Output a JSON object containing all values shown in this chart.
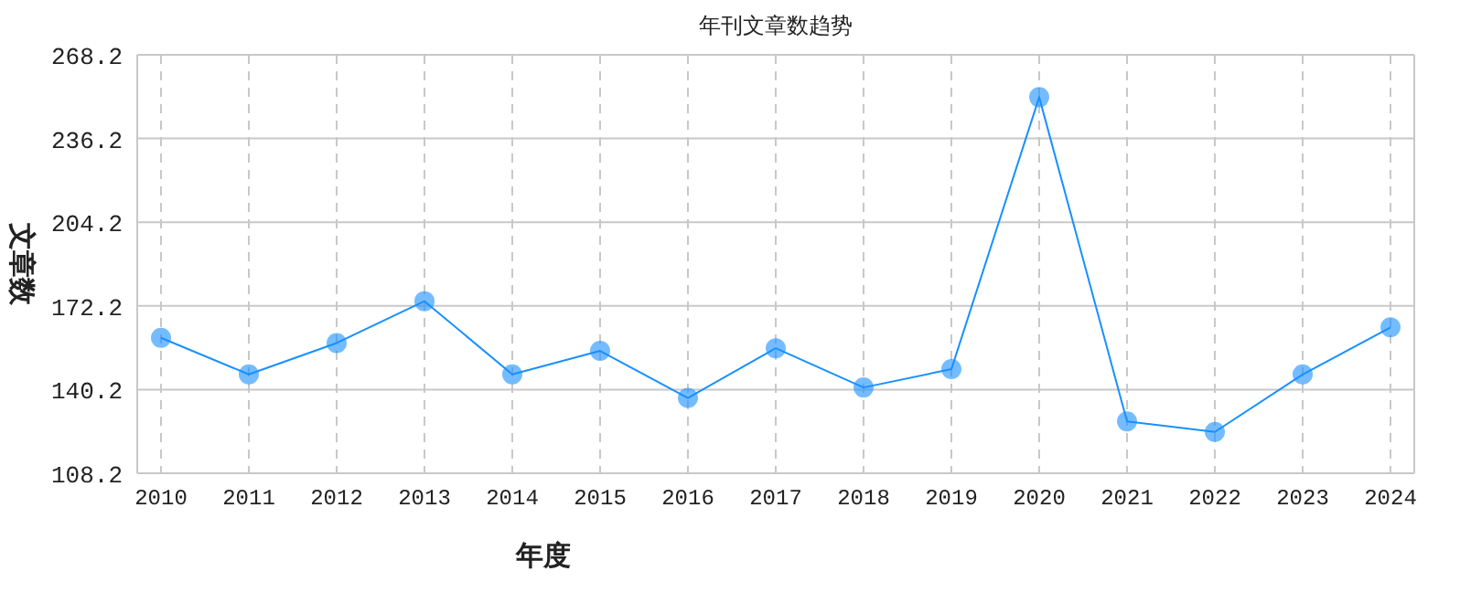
{
  "chart_data": {
    "type": "line",
    "title": "年刊文章数趋势",
    "xlabel": "年度",
    "ylabel": "文章数",
    "categories": [
      "2010",
      "2011",
      "2012",
      "2013",
      "2014",
      "2015",
      "2016",
      "2017",
      "2018",
      "2019",
      "2020",
      "2021",
      "2022",
      "2023",
      "2024"
    ],
    "series": [
      {
        "color": "#1890ff",
        "values": [
          160,
          146,
          158,
          174,
          146,
          155,
          137,
          156,
          141,
          148,
          252,
          128,
          124,
          146,
          164
        ]
      }
    ],
    "ylim": [
      108.2,
      268.2
    ],
    "yticks": [
      108.2,
      140.2,
      172.2,
      204.2,
      236.2,
      268.2
    ],
    "grid": true,
    "marker": "circle",
    "line_style": "solid"
  }
}
